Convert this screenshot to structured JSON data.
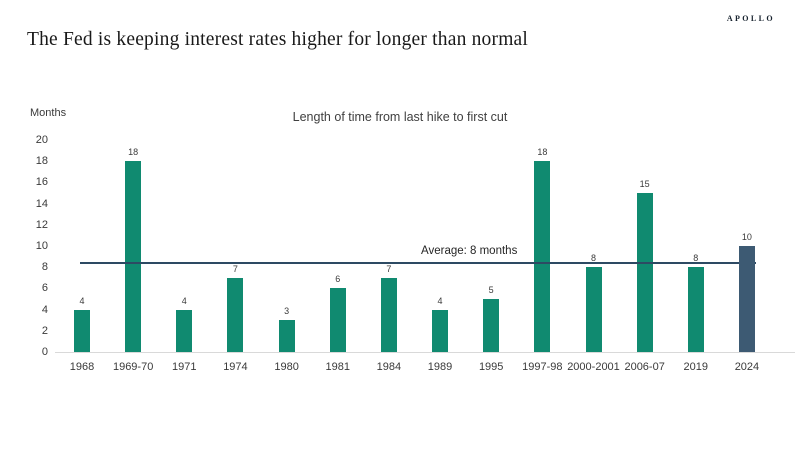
{
  "page": {
    "logo": "APOLLO",
    "title": "The Fed is keeping interest rates higher for longer than normal"
  },
  "chart_data": {
    "type": "bar",
    "title": "Length of time from last hike to first cut",
    "ylabel": "Months",
    "categories": [
      "1968",
      "1969-70",
      "1971",
      "1974",
      "1980",
      "1981",
      "1984",
      "1989",
      "1995",
      "1997-98",
      "2000-2001",
      "2006-07",
      "2019",
      "2024"
    ],
    "values": [
      4,
      18,
      4,
      7,
      3,
      6,
      7,
      4,
      5,
      18,
      8,
      15,
      8,
      10
    ],
    "bar_color": "#108a70",
    "highlight_category": "2024",
    "highlight_color": "#3d5a73",
    "average_line": {
      "value": 8.4,
      "label": "Average: 8 months",
      "color": "#2d4a63"
    },
    "ylim": [
      0,
      20
    ],
    "ytick_step": 2,
    "grid": false,
    "legend": "none"
  }
}
